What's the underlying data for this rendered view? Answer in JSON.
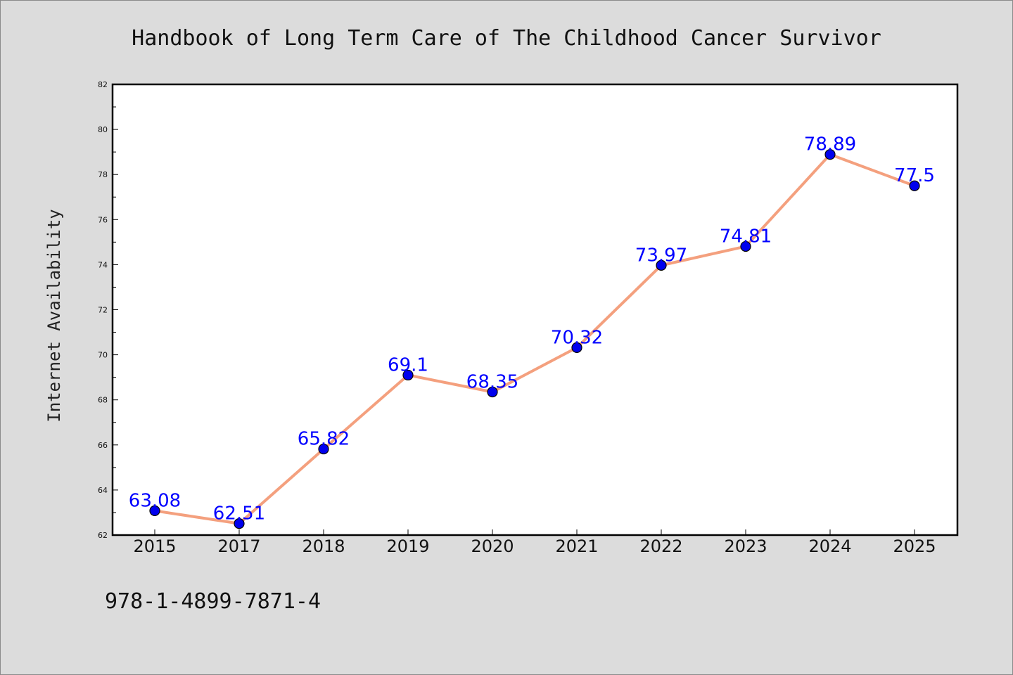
{
  "chart_data": {
    "type": "line",
    "title": "Handbook of Long Term Care of The Childhood Cancer Survivor",
    "xlabel": "",
    "ylabel": "Internet Availability",
    "categories": [
      "2015",
      "2017",
      "2018",
      "2019",
      "2020",
      "2021",
      "2022",
      "2023",
      "2024",
      "2025"
    ],
    "values": [
      63.08,
      62.51,
      65.82,
      69.1,
      68.35,
      70.32,
      73.97,
      74.81,
      78.89,
      77.5
    ],
    "data_labels": [
      "63.08",
      "62.51",
      "65.82",
      "69.1",
      "68.35",
      "70.32",
      "73.97",
      "74.81",
      "78.89",
      "77.5"
    ],
    "ylim": [
      62,
      82
    ],
    "yticks": [
      "62",
      "64",
      "66",
      "68",
      "70",
      "72",
      "74",
      "76",
      "78",
      "80",
      "82"
    ],
    "grid": false,
    "line_color": "#f4a07e",
    "marker_color": "#0000ee",
    "label_color": "#0000ff"
  },
  "footer_text": "978-1-4899-7871-4"
}
